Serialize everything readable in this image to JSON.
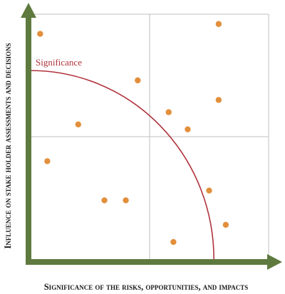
{
  "chart_data": {
    "type": "scatter",
    "title": "",
    "xlabel": "Significance of the risks, opportunities, and impacts",
    "ylabel": "Influence on stake holder assessments and decisions",
    "xlim": [
      0,
      100
    ],
    "ylim": [
      0,
      100
    ],
    "grid": "quadrants",
    "points": [
      {
        "x": 4,
        "y": 92
      },
      {
        "x": 79,
        "y": 96
      },
      {
        "x": 45,
        "y": 73
      },
      {
        "x": 79,
        "y": 65
      },
      {
        "x": 58,
        "y": 60
      },
      {
        "x": 20,
        "y": 55
      },
      {
        "x": 66,
        "y": 53
      },
      {
        "x": 7,
        "y": 40
      },
      {
        "x": 75,
        "y": 28
      },
      {
        "x": 31,
        "y": 24
      },
      {
        "x": 40,
        "y": 24
      },
      {
        "x": 82,
        "y": 14
      },
      {
        "x": 60,
        "y": 7
      }
    ],
    "threshold_curve": {
      "label": "Significance",
      "radius": 77
    },
    "colors": {
      "axis": "#5e7a3e",
      "point": "#e28f3c",
      "curve": "#b0323b",
      "grid": "#bfbfbf"
    }
  }
}
